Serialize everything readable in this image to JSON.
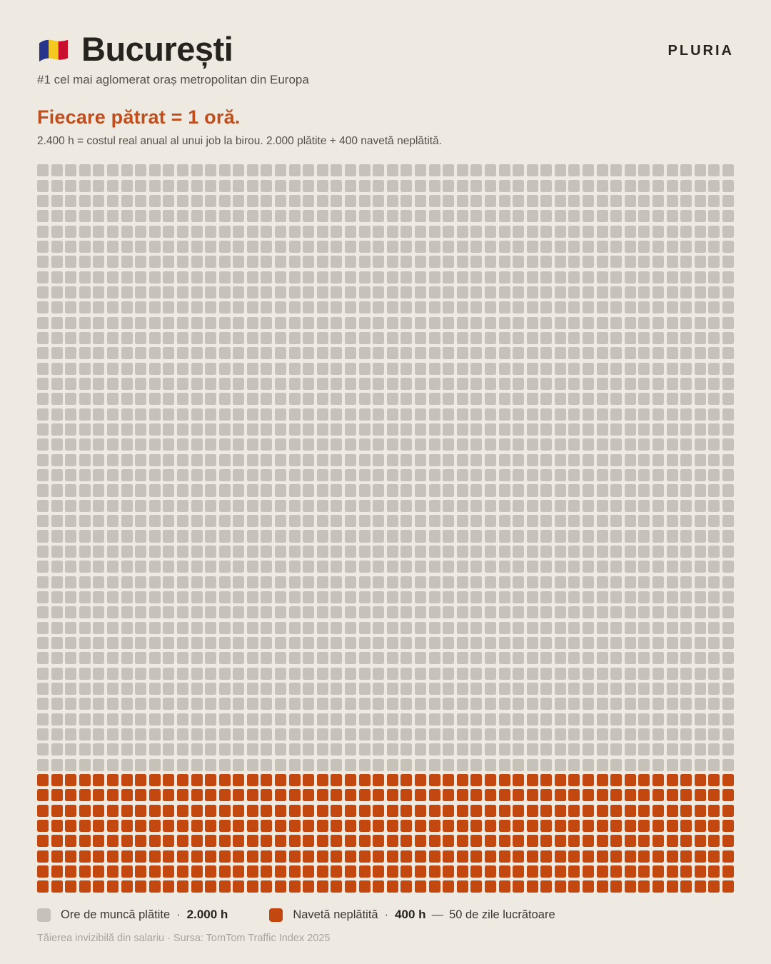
{
  "header": {
    "title": "București",
    "brand": "PLURIA",
    "subtitle": "#1 cel mai aglomerat oraș metropolitan din Europa"
  },
  "section": {
    "heading": "Fiecare pătrat = 1 oră.",
    "description": "2.400 h = costul real anual al unui job la birou. 2.000 plătite + 400 navetă neplătită."
  },
  "chart_data": {
    "type": "waffle",
    "title": "Fiecare pătrat = 1 oră.",
    "unit_per_square": "1 oră",
    "total_squares": 2400,
    "columns": 50,
    "rows": 48,
    "series": [
      {
        "key": "paid",
        "name": "Ore de muncă plătite",
        "value": 2000,
        "color": "#c6c2b9"
      },
      {
        "key": "commute",
        "name": "Navetă neplătită",
        "value": 400,
        "color": "#c2480f"
      }
    ]
  },
  "legend": {
    "items": [
      {
        "label": "Ore de muncă plătite",
        "separator": "·",
        "value": "2.000 h",
        "dash": "",
        "suffix": "",
        "color": "#c6c2b9"
      },
      {
        "label": "Navetă neplătită",
        "separator": "·",
        "value": "400 h",
        "dash": "—",
        "suffix": "50 de zile lucrătoare",
        "color": "#c2480f"
      }
    ]
  },
  "footer": {
    "note": "Tăierea invizibilă din salariu · Sursa: TomTom Traffic Index 2025"
  },
  "colors": {
    "background": "#efeae1",
    "title_text": "#26231f",
    "heading_orange": "#bf4e1c",
    "muted_text": "#54514b",
    "footer_text": "#a9a59c",
    "square_gray": "#c6c2b9",
    "square_orange": "#c2480f",
    "flag_blue": "#27348b",
    "flag_yellow": "#f5c820",
    "flag_red": "#c8102e"
  }
}
